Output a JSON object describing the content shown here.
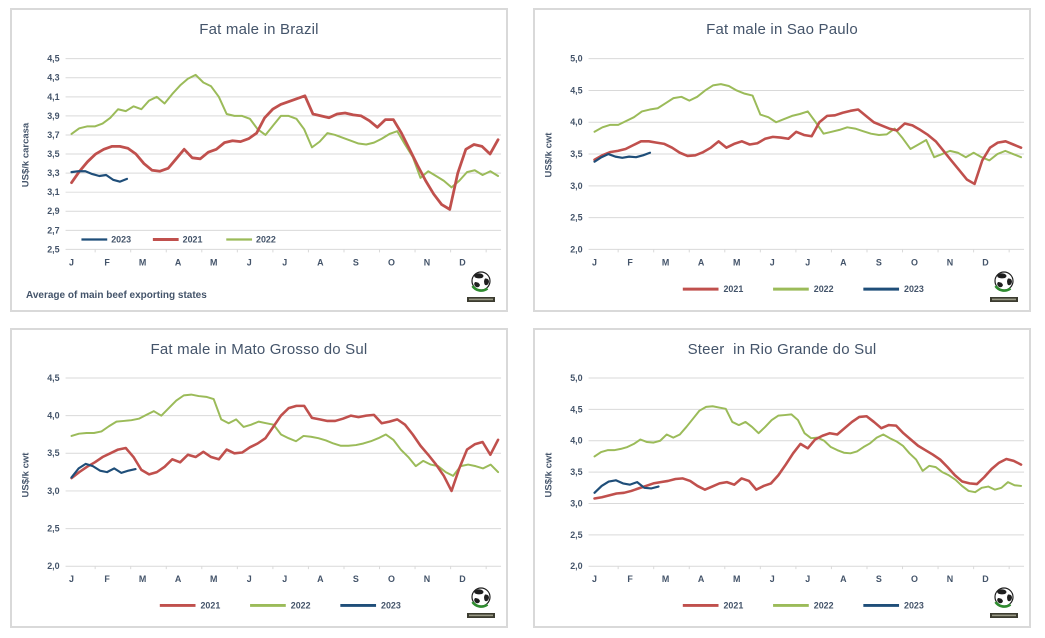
{
  "page": {
    "background": "#ffffff"
  },
  "colors": {
    "series_2021": "#C0504D",
    "series_2022": "#9BBB59",
    "series_2023": "#1F4E79",
    "grid": "#D9D9D9",
    "text": "#44546A",
    "panel_border": "#D9D9D9",
    "logo_green": "#2E8B2E",
    "logo_dark": "#1f1f1f"
  },
  "chart_data": [
    {
      "type": "line",
      "title": "Fat male in Brazil",
      "ylabel": "US$/k carcasa",
      "footer": "Average  of main beef exporting states",
      "ylim": [
        2.5,
        4.5
      ],
      "yticks": [
        "4,5",
        "4,3",
        "4,1",
        "3,9",
        "3,7",
        "3,5",
        "3,3",
        "3,1",
        "2,9",
        "2,7",
        "2,5"
      ],
      "months": [
        "J",
        "F",
        "M",
        "A",
        "M",
        "J",
        "J",
        "A",
        "S",
        "O",
        "N",
        "D"
      ],
      "grid": true,
      "legend": {
        "position": "inside",
        "y": 231,
        "items": [
          "2023",
          "2021",
          "2022"
        ]
      },
      "series": [
        {
          "name": "2022",
          "color": "#9BBB59",
          "width": 2,
          "values": [
            3.71,
            3.77,
            3.79,
            3.79,
            3.82,
            3.88,
            3.97,
            3.95,
            4.0,
            3.97,
            4.06,
            4.1,
            4.03,
            4.13,
            4.22,
            4.29,
            4.33,
            4.25,
            4.21,
            4.1,
            3.92,
            3.9,
            3.9,
            3.87,
            3.76,
            3.7,
            3.8,
            3.9,
            3.9,
            3.87,
            3.76,
            3.57,
            3.63,
            3.72,
            3.7,
            3.67,
            3.64,
            3.61,
            3.6,
            3.62,
            3.66,
            3.71,
            3.74,
            3.6,
            3.47,
            3.25,
            3.32,
            3.27,
            3.22,
            3.15,
            3.22,
            3.31,
            3.33,
            3.28,
            3.32,
            3.27
          ]
        },
        {
          "name": "2021",
          "color": "#C0504D",
          "width": 2.8,
          "values": [
            3.2,
            3.32,
            3.42,
            3.5,
            3.55,
            3.58,
            3.58,
            3.56,
            3.5,
            3.4,
            3.33,
            3.32,
            3.35,
            3.45,
            3.55,
            3.46,
            3.45,
            3.52,
            3.55,
            3.62,
            3.64,
            3.63,
            3.66,
            3.72,
            3.88,
            3.97,
            4.02,
            4.05,
            4.08,
            4.11,
            3.92,
            3.9,
            3.88,
            3.92,
            3.93,
            3.91,
            3.9,
            3.85,
            3.78,
            3.86,
            3.86,
            3.72,
            3.55,
            3.38,
            3.22,
            3.08,
            2.97,
            2.92,
            3.3,
            3.55,
            3.6,
            3.58,
            3.5,
            3.65
          ]
        },
        {
          "name": "2023",
          "color": "#1F4E79",
          "width": 2.2,
          "span": 0.13,
          "values": [
            3.31,
            3.32,
            3.32,
            3.29,
            3.27,
            3.28,
            3.23,
            3.21,
            3.24
          ]
        }
      ]
    },
    {
      "type": "line",
      "title": "Fat male in Sao Paulo",
      "ylabel": "US$/k cwt",
      "ylim": [
        2.0,
        5.0
      ],
      "yticks": [
        "5,0",
        "4,5",
        "4,0",
        "3,5",
        "3,0",
        "2,5",
        "2,0"
      ],
      "months": [
        "J",
        "F",
        "M",
        "A",
        "M",
        "J",
        "J",
        "A",
        "S",
        "O",
        "N",
        "D"
      ],
      "grid": true,
      "legend": {
        "position": "below",
        "items": [
          "2021",
          "2022",
          "2023"
        ]
      },
      "series": [
        {
          "name": "2022",
          "color": "#9BBB59",
          "width": 2,
          "values": [
            3.85,
            3.92,
            3.96,
            3.96,
            4.02,
            4.08,
            4.17,
            4.2,
            4.22,
            4.3,
            4.38,
            4.4,
            4.34,
            4.4,
            4.5,
            4.58,
            4.6,
            4.57,
            4.5,
            4.45,
            4.42,
            4.12,
            4.08,
            4.0,
            4.05,
            4.1,
            4.13,
            4.17,
            4.0,
            3.82,
            3.85,
            3.88,
            3.92,
            3.9,
            3.86,
            3.82,
            3.8,
            3.81,
            3.9,
            3.75,
            3.58,
            3.65,
            3.72,
            3.45,
            3.5,
            3.55,
            3.52,
            3.45,
            3.52,
            3.45,
            3.4,
            3.5,
            3.55,
            3.5,
            3.45
          ]
        },
        {
          "name": "2021",
          "color": "#C0504D",
          "width": 2.6,
          "values": [
            3.41,
            3.48,
            3.53,
            3.55,
            3.58,
            3.64,
            3.7,
            3.7,
            3.68,
            3.66,
            3.6,
            3.52,
            3.47,
            3.48,
            3.53,
            3.6,
            3.7,
            3.6,
            3.66,
            3.7,
            3.65,
            3.67,
            3.74,
            3.77,
            3.76,
            3.74,
            3.85,
            3.8,
            3.78,
            4.0,
            4.1,
            4.11,
            4.15,
            4.18,
            4.2,
            4.1,
            4.0,
            3.95,
            3.9,
            3.87,
            3.98,
            3.95,
            3.88,
            3.8,
            3.7,
            3.55,
            3.4,
            3.25,
            3.1,
            3.03,
            3.4,
            3.6,
            3.68,
            3.7,
            3.65,
            3.6
          ]
        },
        {
          "name": "2023",
          "color": "#1F4E79",
          "width": 2.2,
          "span": 0.13,
          "values": [
            3.38,
            3.45,
            3.5,
            3.46,
            3.44,
            3.46,
            3.45,
            3.48,
            3.52
          ]
        }
      ]
    },
    {
      "type": "line",
      "title": "Fat male in Mato Grosso do Sul",
      "ylabel": "US$/k cwt",
      "ylim": [
        2.0,
        4.5
      ],
      "yticks": [
        "4,5",
        "4,0",
        "3,5",
        "3,0",
        "2,5",
        "2,0"
      ],
      "months": [
        "J",
        "F",
        "M",
        "A",
        "M",
        "J",
        "J",
        "A",
        "S",
        "O",
        "N",
        "D"
      ],
      "grid": true,
      "legend": {
        "position": "below",
        "items": [
          "2021",
          "2022",
          "2023"
        ]
      },
      "series": [
        {
          "name": "2022",
          "color": "#9BBB59",
          "width": 2,
          "values": [
            3.73,
            3.76,
            3.77,
            3.77,
            3.79,
            3.86,
            3.92,
            3.93,
            3.94,
            3.96,
            4.01,
            4.06,
            4.0,
            4.1,
            4.2,
            4.27,
            4.28,
            4.26,
            4.25,
            4.22,
            3.95,
            3.9,
            3.95,
            3.85,
            3.88,
            3.92,
            3.9,
            3.88,
            3.75,
            3.7,
            3.66,
            3.73,
            3.72,
            3.7,
            3.67,
            3.63,
            3.6,
            3.6,
            3.61,
            3.63,
            3.66,
            3.7,
            3.75,
            3.68,
            3.55,
            3.45,
            3.33,
            3.4,
            3.35,
            3.33,
            3.25,
            3.2,
            3.33,
            3.35,
            3.33,
            3.3,
            3.35,
            3.25
          ]
        },
        {
          "name": "2021",
          "color": "#C0504D",
          "width": 2.6,
          "values": [
            3.17,
            3.25,
            3.32,
            3.38,
            3.45,
            3.5,
            3.55,
            3.57,
            3.45,
            3.28,
            3.22,
            3.25,
            3.32,
            3.42,
            3.38,
            3.48,
            3.45,
            3.52,
            3.45,
            3.42,
            3.55,
            3.5,
            3.51,
            3.58,
            3.63,
            3.7,
            3.85,
            4.0,
            4.1,
            4.13,
            4.13,
            3.97,
            3.95,
            3.93,
            3.93,
            3.96,
            4.0,
            3.98,
            4.0,
            4.01,
            3.9,
            3.92,
            3.95,
            3.88,
            3.75,
            3.6,
            3.48,
            3.35,
            3.2,
            3.0,
            3.3,
            3.55,
            3.62,
            3.65,
            3.48,
            3.68
          ]
        },
        {
          "name": "2023",
          "color": "#1F4E79",
          "width": 2.2,
          "span": 0.15,
          "values": [
            3.18,
            3.3,
            3.36,
            3.33,
            3.27,
            3.25,
            3.3,
            3.24,
            3.27,
            3.29
          ]
        }
      ]
    },
    {
      "type": "line",
      "title": "Steer  in Rio Grande do Sul",
      "ylabel": "US$/k cwt",
      "ylim": [
        2.0,
        5.0
      ],
      "yticks": [
        "5,0",
        "4,5",
        "4,0",
        "3,5",
        "3,0",
        "2,5",
        "2,0"
      ],
      "months": [
        "J",
        "F",
        "M",
        "A",
        "M",
        "J",
        "J",
        "A",
        "S",
        "O",
        "N",
        "D"
      ],
      "grid": true,
      "legend": {
        "position": "below",
        "items": [
          "2021",
          "2022",
          "2023"
        ]
      },
      "series": [
        {
          "name": "2022",
          "color": "#9BBB59",
          "width": 2,
          "values": [
            3.75,
            3.82,
            3.85,
            3.85,
            3.87,
            3.9,
            3.95,
            4.02,
            3.98,
            3.97,
            4.0,
            4.1,
            4.05,
            4.1,
            4.22,
            4.35,
            4.48,
            4.54,
            4.55,
            4.53,
            4.51,
            4.3,
            4.25,
            4.3,
            4.22,
            4.12,
            4.22,
            4.33,
            4.4,
            4.41,
            4.42,
            4.33,
            4.12,
            4.04,
            4.05,
            4.0,
            3.9,
            3.85,
            3.81,
            3.8,
            3.83,
            3.9,
            3.96,
            4.05,
            4.1,
            4.04,
            3.99,
            3.92,
            3.8,
            3.7,
            3.52,
            3.6,
            3.58,
            3.5,
            3.45,
            3.38,
            3.28,
            3.2,
            3.18,
            3.25,
            3.27,
            3.22,
            3.25,
            3.34,
            3.29,
            3.28
          ]
        },
        {
          "name": "2021",
          "color": "#C0504D",
          "width": 2.6,
          "values": [
            3.08,
            3.1,
            3.13,
            3.16,
            3.17,
            3.2,
            3.24,
            3.28,
            3.32,
            3.34,
            3.36,
            3.39,
            3.4,
            3.36,
            3.28,
            3.22,
            3.27,
            3.32,
            3.34,
            3.3,
            3.4,
            3.36,
            3.22,
            3.28,
            3.32,
            3.45,
            3.62,
            3.8,
            3.95,
            3.88,
            4.02,
            4.08,
            4.12,
            4.1,
            4.2,
            4.3,
            4.38,
            4.39,
            4.3,
            4.2,
            4.25,
            4.24,
            4.12,
            4.02,
            3.92,
            3.85,
            3.78,
            3.7,
            3.58,
            3.45,
            3.35,
            3.32,
            3.31,
            3.42,
            3.55,
            3.65,
            3.71,
            3.68,
            3.62
          ]
        },
        {
          "name": "2023",
          "color": "#1F4E79",
          "width": 2.2,
          "span": 0.15,
          "values": [
            3.17,
            3.28,
            3.35,
            3.37,
            3.32,
            3.3,
            3.34,
            3.25,
            3.24,
            3.27
          ]
        }
      ]
    }
  ]
}
